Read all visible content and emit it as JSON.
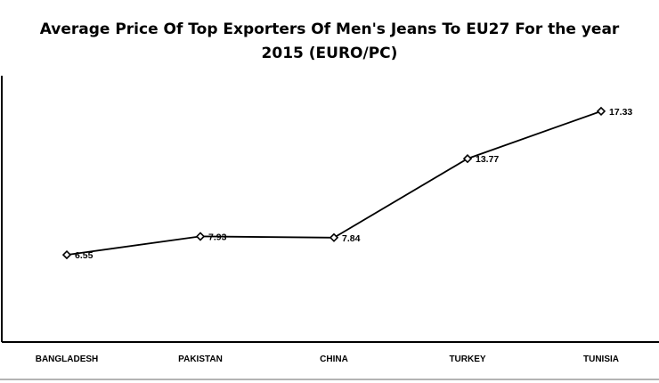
{
  "chart_data": {
    "type": "line",
    "title": "Average Price Of Top Exporters Of Men's Jeans To EU27 For the year 2015 (EURO/PC)",
    "xlabel": "",
    "ylabel": "",
    "categories": [
      "BANGLADESH",
      "PAKISTAN",
      "CHINA",
      "TURKEY",
      "TUNISIA"
    ],
    "series": [
      {
        "values": [
          6.55,
          7.93,
          7.84,
          13.77,
          17.33
        ]
      }
    ],
    "data_labels": [
      "6.55",
      "7.93",
      "7.84",
      "13.77",
      "17.33"
    ],
    "ylim": [
      0,
      20
    ],
    "grid": false,
    "legend": "none",
    "line_color": "#000000",
    "marker": "diamond-hollow"
  }
}
